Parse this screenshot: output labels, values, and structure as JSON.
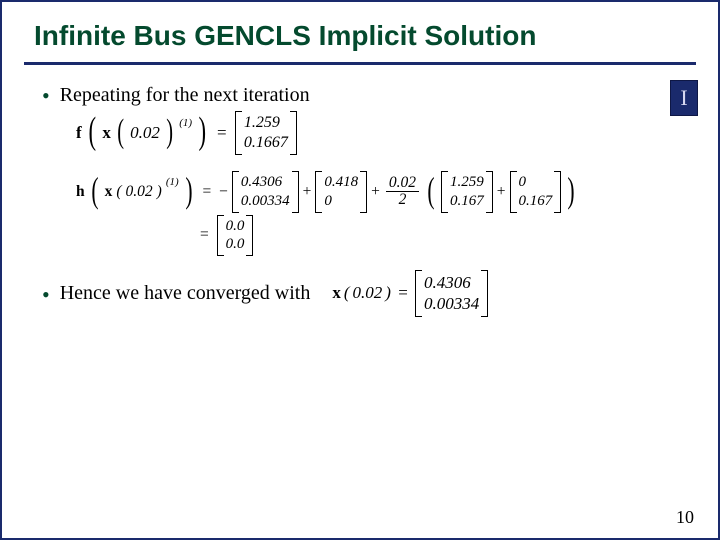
{
  "title": "Infinite Bus GENCLS Implicit Solution",
  "logo_glyph": "I",
  "bullets": {
    "b1": "Repeating for the next iteration",
    "b2": "Hence we have converged with"
  },
  "eq1": {
    "fn": "f",
    "var": "x",
    "t": "0.02",
    "sup": "(1)",
    "vec": [
      "1.259",
      "0.1667"
    ]
  },
  "eq2": {
    "fn": "h",
    "var": "x",
    "t": "0.02",
    "sup": "(1)",
    "neg": "−",
    "vecA": [
      "0.4306",
      "0.00334"
    ],
    "vecB": [
      "0.418",
      "0"
    ],
    "frac_top": "0.02",
    "frac_bot": "2",
    "vecC": [
      "1.259",
      "0.167"
    ],
    "vecD": [
      "0",
      "0.167"
    ],
    "result": [
      "0.0",
      "0.0"
    ]
  },
  "eq3": {
    "var": "x",
    "t": "0.02",
    "vec": [
      "0.4306",
      "0.00334"
    ]
  },
  "page_number": "10",
  "colors": {
    "title": "#044a2e",
    "rule": "#1a2a6c",
    "logo_bg": "#1a2a6c",
    "bullet": "#044a2e"
  }
}
